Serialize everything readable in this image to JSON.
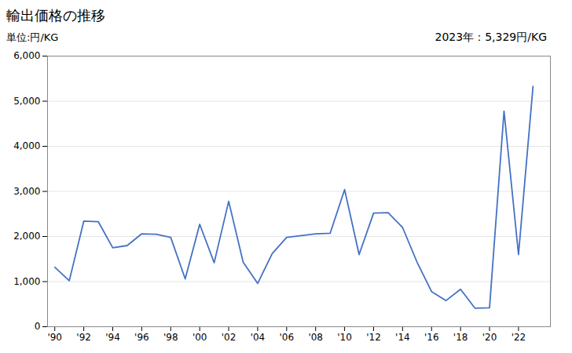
{
  "chart_data": {
    "type": "line",
    "title": "輸出価格の推移",
    "ylabel": "単位:円/KG",
    "annotation": "2023年：5,329円/KG",
    "x": [
      1990,
      1991,
      1992,
      1993,
      1994,
      1995,
      1996,
      1997,
      1998,
      1999,
      2000,
      2001,
      2002,
      2003,
      2004,
      2005,
      2006,
      2007,
      2008,
      2009,
      2010,
      2011,
      2012,
      2013,
      2014,
      2015,
      2016,
      2017,
      2018,
      2019,
      2020,
      2021,
      2022,
      2023
    ],
    "values": [
      1320,
      1020,
      2340,
      2330,
      1750,
      1800,
      2060,
      2050,
      1980,
      1060,
      2270,
      1420,
      2780,
      1430,
      960,
      1620,
      1980,
      2020,
      2060,
      2070,
      3040,
      1600,
      2520,
      2530,
      2200,
      1430,
      780,
      580,
      830,
      410,
      420,
      4780,
      1600,
      5329
    ],
    "color": "#4472C4",
    "xlim": [
      1989.5,
      2024.2
    ],
    "xticks": [
      {
        "value": 1990,
        "label": "'90"
      },
      {
        "value": 1992,
        "label": "'92"
      },
      {
        "value": 1994,
        "label": "'94"
      },
      {
        "value": 1996,
        "label": "'96"
      },
      {
        "value": 1998,
        "label": "'98"
      },
      {
        "value": 2000,
        "label": "'00"
      },
      {
        "value": 2002,
        "label": "'02"
      },
      {
        "value": 2004,
        "label": "'04"
      },
      {
        "value": 2006,
        "label": "'06"
      },
      {
        "value": 2008,
        "label": "'08"
      },
      {
        "value": 2010,
        "label": "'10"
      },
      {
        "value": 2012,
        "label": "'12"
      },
      {
        "value": 2014,
        "label": "'14"
      },
      {
        "value": 2016,
        "label": "'16"
      },
      {
        "value": 2018,
        "label": "'18"
      },
      {
        "value": 2020,
        "label": "'20"
      },
      {
        "value": 2022,
        "label": "'22"
      }
    ],
    "ylim": [
      0,
      6000
    ],
    "yticks": [
      0,
      {
        "value": 1000,
        "label": "1,000"
      },
      {
        "value": 2000,
        "label": "2,000"
      },
      {
        "value": 3000,
        "label": "3,000"
      },
      {
        "value": 4000,
        "label": "4,000"
      },
      {
        "value": 5000,
        "label": "5,000"
      },
      {
        "value": 6000,
        "label": "6,000"
      }
    ],
    "grid": "y"
  }
}
